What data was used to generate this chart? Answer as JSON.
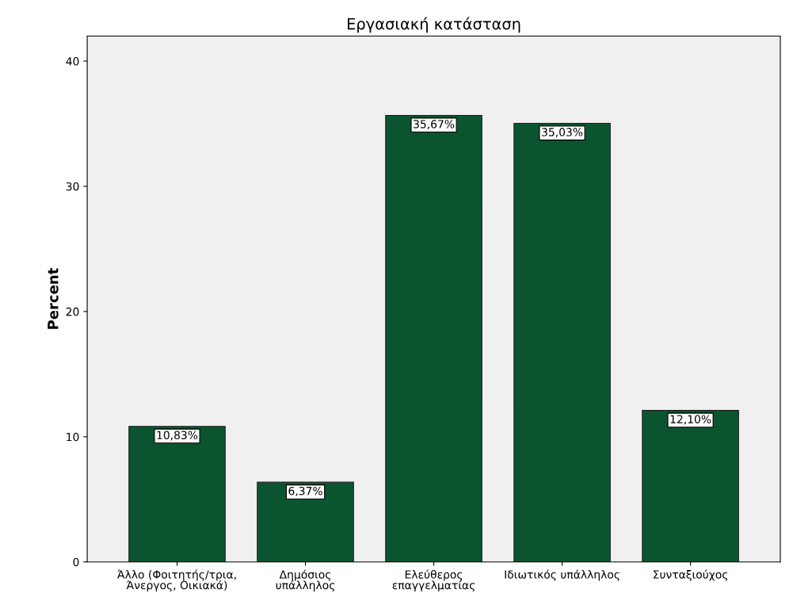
{
  "chart_data": {
    "type": "bar",
    "title": "Εργασιακή κατάσταση",
    "ylabel": "Percent",
    "categories": [
      "Άλλο (Φοιτητής/τρια,\nΆνεργος, Οικιακά)",
      "Δημόσιος\nυπάλληλος",
      "Ελεύθερος\nεπαγγελματίας",
      "Ιδιωτικός υπάλληλος",
      "Συνταξιούχος"
    ],
    "values": [
      10.83,
      6.37,
      35.67,
      35.03,
      12.1
    ],
    "value_labels": [
      "10,83%",
      "6,37%",
      "35,67%",
      "35,03%",
      "12,10%"
    ],
    "color": "#0b5430",
    "ylim": [
      0,
      42
    ],
    "yticks": [
      0,
      10,
      20,
      30,
      40
    ],
    "grid": false
  }
}
